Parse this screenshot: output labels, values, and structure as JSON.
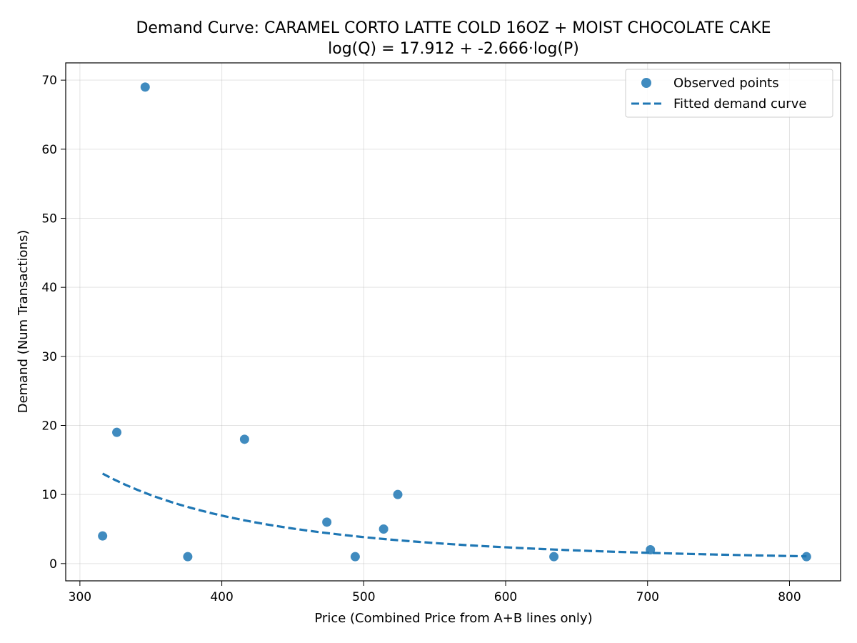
{
  "chart_data": {
    "type": "scatter",
    "title": "Demand Curve: CARAMEL CORTO LATTE COLD 16OZ + MOIST CHOCOLATE CAKE",
    "subtitle": "log(Q) = 17.912 + -2.666·log(P)",
    "xlabel": "Price (Combined Price from A+B lines only)",
    "ylabel": "Demand (Num Transactions)",
    "xlim": [
      290,
      836
    ],
    "ylim": [
      -2.5,
      72.5
    ],
    "xticks": [
      300,
      400,
      500,
      600,
      700,
      800
    ],
    "yticks": [
      0,
      10,
      20,
      30,
      40,
      50,
      60,
      70
    ],
    "grid": true,
    "legend_position": "top-right",
    "colors": {
      "points": "#1f77b4",
      "fit": "#1f77b4"
    },
    "series": [
      {
        "name": "Observed points",
        "kind": "scatter",
        "x": [
          316,
          326,
          346,
          376,
          416,
          474,
          494,
          514,
          524,
          634,
          702,
          812
        ],
        "y": [
          4,
          19,
          69,
          1,
          18,
          6,
          1,
          5,
          10,
          1,
          2,
          1
        ]
      },
      {
        "name": "Fitted demand curve",
        "kind": "line",
        "style": "dashed",
        "intercept": 17.912,
        "slope": -2.666,
        "x_range": [
          316,
          812
        ]
      }
    ]
  }
}
